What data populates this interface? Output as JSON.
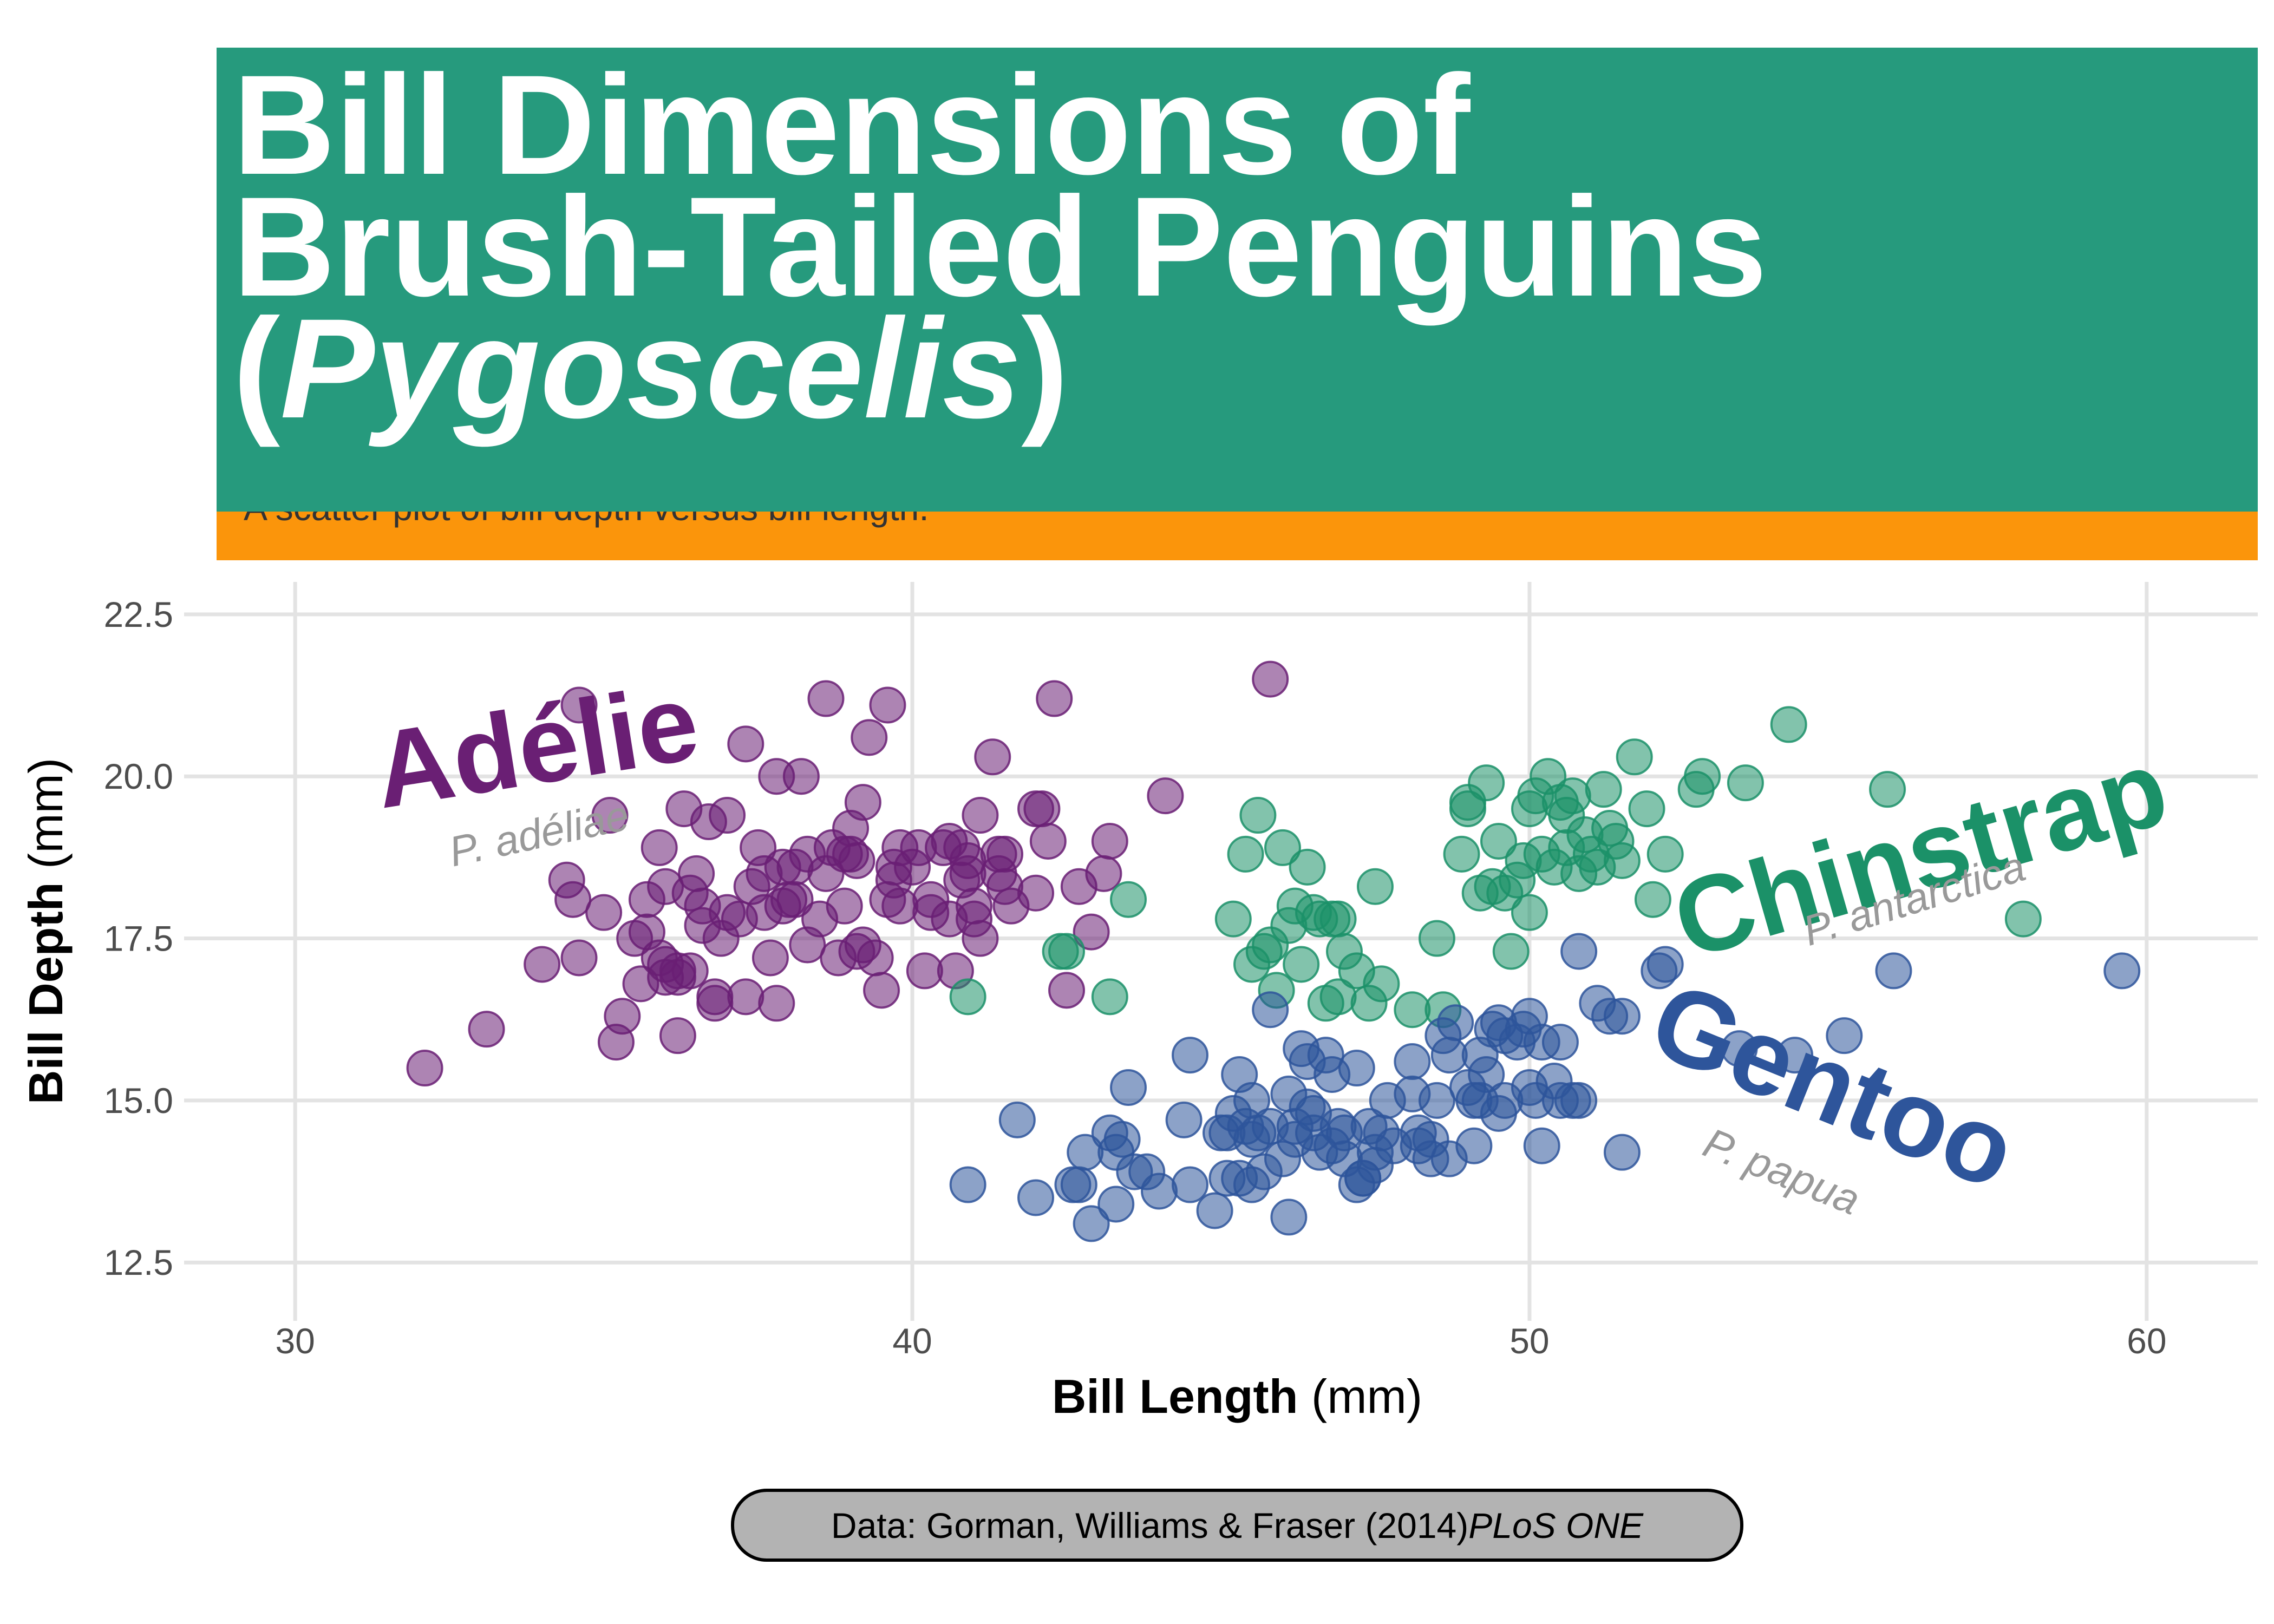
{
  "header": {
    "title_line1": "Bill Dimensions of",
    "title_line2": "Brush-Tailed Penguins",
    "title_paren_open": "(",
    "title_genus": "Pygoscelis",
    "title_paren_close": ")",
    "subtitle": "A scatter plot of bill depth versus bill length.",
    "colors": {
      "title_band": "#269A7D",
      "subtitle_band": "#FB950B"
    }
  },
  "caption": {
    "prefix": "Data: Gorman, Williams & Fraser (2014) ",
    "journal": "PLoS ONE"
  },
  "chart_data": {
    "type": "scatter",
    "xlabel_bold": "Bill Length",
    "xlabel_unit": " (mm)",
    "ylabel_bold": "Bill Depth",
    "ylabel_unit": " (mm)",
    "xlim": [
      28.2,
      61.8
    ],
    "ylim": [
      11.6,
      23.0
    ],
    "xticks": [
      30,
      40,
      50,
      60
    ],
    "yticks": [
      12.5,
      15.0,
      17.5,
      20.0,
      22.5
    ],
    "xtick_labels": [
      "30",
      "40",
      "50",
      "60"
    ],
    "ytick_labels": [
      "12.5",
      "15.0",
      "17.5",
      "20.0",
      "22.5"
    ],
    "grid": true,
    "legend": "none",
    "series": [
      {
        "name": "Adélie",
        "label": "Adélie",
        "scientific_name": "P. adéliae",
        "color": "#6A1F74",
        "x": [
          32.1,
          33.1,
          34.0,
          34.4,
          34.5,
          34.6,
          34.6,
          35.0,
          35.1,
          35.2,
          35.3,
          35.5,
          35.6,
          35.7,
          35.9,
          36.0,
          36.0,
          36.2,
          36.2,
          36.3,
          36.4,
          36.5,
          36.6,
          36.7,
          36.8,
          36.9,
          37.0,
          37.2,
          37.3,
          37.5,
          37.6,
          37.7,
          37.8,
          37.9,
          38.1,
          38.2,
          38.3,
          38.6,
          38.7,
          38.8,
          38.9,
          39.0,
          39.1,
          39.2,
          39.3,
          39.5,
          39.6,
          39.7,
          39.8,
          40.1,
          40.2,
          40.3,
          40.5,
          40.6,
          40.7,
          40.8,
          40.9,
          41.0,
          41.1,
          41.3,
          41.4,
          41.5,
          41.6,
          42.0,
          42.1,
          42.2,
          42.3,
          42.5,
          42.7,
          42.9,
          43.1,
          43.2,
          44.1,
          45.8,
          36.4,
          37.3,
          38.1,
          39.4,
          40.9,
          38.5,
          39.0,
          36.6,
          37.8,
          39.6,
          40.3,
          41.1,
          37.0,
          38.9,
          35.7,
          36.2,
          37.6,
          39.7,
          40.6,
          41.5,
          38.0,
          39.2,
          36.8,
          37.9,
          40.0,
          41.0,
          35.9,
          38.6,
          39.1,
          40.8,
          37.4,
          38.3,
          39.8,
          36.0,
          41.4,
          42.0
        ],
        "y": [
          15.5,
          16.1,
          17.1,
          18.4,
          18.1,
          21.1,
          17.2,
          17.9,
          19.4,
          15.9,
          16.3,
          17.5,
          16.8,
          18.1,
          18.9,
          17.1,
          16.9,
          17.0,
          16.0,
          19.5,
          17.0,
          18.5,
          18.0,
          19.3,
          16.5,
          17.5,
          19.4,
          17.8,
          20.5,
          18.9,
          18.5,
          17.2,
          20.0,
          18.6,
          18.6,
          20.0,
          17.4,
          21.2,
          18.9,
          17.2,
          18.8,
          18.8,
          18.7,
          19.6,
          20.6,
          16.7,
          21.1,
          18.4,
          18.9,
          18.9,
          17.0,
          18.1,
          18.9,
          19.0,
          17.0,
          18.9,
          18.5,
          18.0,
          17.5,
          20.3,
          18.5,
          18.3,
          18.0,
          19.5,
          19.5,
          19.0,
          21.2,
          16.7,
          18.3,
          17.6,
          18.5,
          19.0,
          19.7,
          21.5,
          18.2,
          16.6,
          18.1,
          17.2,
          18.7,
          17.8,
          19.2,
          17.7,
          16.5,
          18.1,
          17.9,
          19.4,
          17.9,
          18.0,
          17.6,
          16.9,
          17.9,
          18.6,
          17.8,
          18.8,
          18.1,
          17.4,
          16.6,
          18.0,
          18.6,
          17.8,
          17.2,
          18.5,
          17.3,
          18.4,
          18.3,
          18.8,
          18.0,
          18.3,
          18.8,
          18.2
        ]
      },
      {
        "name": "Chinstrap",
        "label": "Chinstrap",
        "scientific_name": "P. antarctica",
        "color": "#1B9168",
        "x": [
          40.9,
          42.4,
          42.5,
          43.2,
          43.5,
          45.2,
          45.4,
          45.5,
          45.6,
          45.7,
          46.0,
          46.1,
          46.2,
          46.4,
          46.5,
          46.6,
          46.7,
          46.8,
          46.9,
          47.0,
          47.5,
          47.6,
          48.1,
          48.5,
          49.0,
          49.2,
          49.3,
          49.5,
          49.6,
          49.7,
          49.8,
          50.0,
          50.1,
          50.2,
          50.3,
          50.5,
          50.6,
          50.7,
          50.8,
          50.9,
          51.0,
          51.3,
          51.4,
          51.5,
          51.7,
          51.9,
          52.0,
          52.2,
          52.7,
          53.5,
          54.2,
          55.8,
          58.0,
          45.9,
          46.3,
          47.2,
          48.6,
          49.0,
          49.9,
          50.4,
          51.2,
          45.8,
          46.9,
          50.0,
          51.1,
          52.8,
          50.6,
          49.4,
          47.4,
          48.9
        ],
        "y": [
          16.6,
          17.3,
          17.3,
          16.6,
          18.1,
          17.8,
          18.8,
          17.1,
          19.4,
          17.3,
          18.9,
          17.7,
          18.0,
          18.6,
          17.9,
          17.8,
          16.5,
          17.8,
          16.6,
          17.3,
          18.3,
          16.8,
          16.4,
          17.5,
          19.6,
          18.2,
          19.9,
          19.0,
          18.2,
          17.3,
          18.4,
          19.5,
          19.7,
          18.8,
          20.0,
          19.6,
          19.4,
          19.7,
          18.5,
          19.1,
          18.8,
          19.2,
          19.0,
          18.7,
          20.3,
          19.5,
          18.1,
          18.8,
          19.8,
          19.9,
          20.8,
          19.8,
          17.8,
          16.7,
          17.1,
          17.0,
          16.4,
          19.5,
          18.7,
          18.6,
          19.8,
          17.4,
          17.8,
          17.9,
          18.6,
          20.0,
          18.9,
          18.3,
          16.5,
          18.8
        ]
      },
      {
        "name": "Gentoo",
        "label": "Gentoo",
        "scientific_name": "P. papua",
        "color": "#2E559B",
        "x": [
          40.9,
          41.7,
          42.0,
          42.6,
          42.7,
          42.8,
          42.9,
          43.2,
          43.3,
          43.4,
          43.5,
          43.6,
          43.8,
          44.0,
          44.4,
          44.5,
          44.9,
          45.0,
          45.1,
          45.2,
          45.3,
          45.4,
          45.5,
          45.6,
          45.7,
          45.8,
          46.1,
          46.2,
          46.3,
          46.4,
          46.5,
          46.6,
          46.8,
          46.9,
          47.0,
          47.2,
          47.3,
          47.4,
          47.5,
          47.6,
          47.7,
          48.1,
          48.2,
          48.4,
          48.5,
          48.6,
          48.7,
          48.8,
          49.0,
          49.1,
          49.2,
          49.3,
          49.4,
          49.5,
          49.6,
          49.8,
          49.9,
          50.0,
          50.1,
          50.2,
          50.4,
          50.5,
          50.7,
          50.8,
          51.1,
          51.3,
          51.5,
          52.1,
          52.2,
          53.4,
          54.3,
          55.1,
          55.9,
          59.6,
          44.5,
          45.1,
          45.5,
          45.8,
          46.1,
          46.4,
          46.7,
          47.2,
          47.8,
          48.2,
          48.4,
          49.1,
          49.6,
          50.0,
          50.5,
          51.5,
          45.3,
          46.0,
          46.8,
          47.5,
          48.7,
          49.5,
          50.8,
          43.3,
          45.5,
          46.2,
          47.3,
          48.1,
          49.2,
          50.2,
          46.5,
          47.0
        ],
        "y": [
          13.7,
          14.7,
          13.5,
          13.7,
          13.7,
          14.2,
          13.1,
          14.5,
          13.4,
          14.4,
          15.2,
          13.9,
          13.9,
          13.6,
          14.7,
          15.7,
          13.3,
          14.5,
          14.5,
          14.8,
          13.8,
          14.6,
          15.0,
          14.5,
          13.9,
          14.6,
          15.1,
          14.4,
          15.8,
          15.6,
          14.8,
          14.2,
          15.4,
          14.6,
          14.5,
          15.5,
          13.8,
          14.6,
          14.0,
          14.5,
          15.0,
          15.1,
          14.3,
          14.4,
          15.0,
          16.0,
          15.7,
          16.2,
          15.2,
          15.0,
          15.7,
          15.4,
          16.1,
          16.2,
          15.0,
          15.9,
          16.1,
          15.2,
          15.0,
          14.3,
          15.3,
          15.9,
          15.0,
          17.3,
          16.5,
          16.3,
          16.3,
          17.0,
          17.1,
          15.8,
          15.7,
          16.0,
          17.0,
          17.0,
          13.7,
          13.8,
          13.7,
          16.4,
          13.2,
          14.9,
          15.7,
          13.7,
          14.3,
          14.5,
          14.1,
          14.3,
          16.0,
          16.3,
          15.0,
          14.2,
          15.4,
          14.1,
          14.3,
          14.2,
          14.1,
          14.8,
          15.0,
          14.2,
          14.4,
          14.6,
          13.8,
          15.6,
          15.0,
          15.9,
          14.5,
          14.1
        ]
      }
    ]
  }
}
